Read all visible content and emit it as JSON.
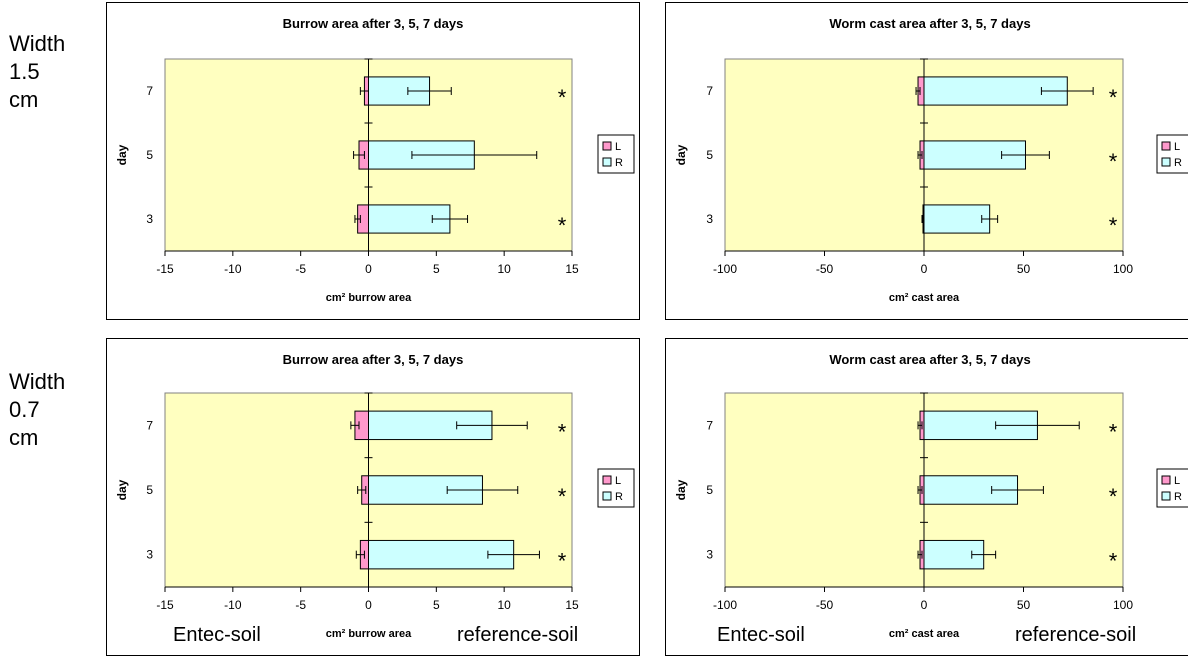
{
  "row_labels": [
    "Width\n1.5\ncm",
    "Width\n0.7\ncm"
  ],
  "bottom_labels": {
    "left": "Entec-soil",
    "right": "reference-soil"
  },
  "colors": {
    "plot_bg": "#ffffc0",
    "L": "#ff99cc",
    "R": "#ccffff"
  },
  "chart_data": [
    {
      "type": "bar",
      "orientation": "horizontal",
      "title": "Burrow area after 3, 5, 7 days",
      "xlabel": "cm² burrow area",
      "ylabel": "day",
      "categories": [
        "3",
        "5",
        "7"
      ],
      "xlim": [
        -15,
        15
      ],
      "xticks": [
        "-15",
        "-10",
        "-5",
        "0",
        "5",
        "10",
        "15"
      ],
      "legend": [
        "L",
        "R"
      ],
      "legend_position": "right",
      "series": [
        {
          "name": "L",
          "values": [
            -0.8,
            -0.7,
            -0.3
          ],
          "errors": [
            0.2,
            0.4,
            0.3
          ]
        },
        {
          "name": "R",
          "values": [
            6.0,
            7.8,
            4.5
          ],
          "errors": [
            1.3,
            4.6,
            1.6
          ]
        }
      ],
      "significance": [
        "*",
        "",
        "*"
      ]
    },
    {
      "type": "bar",
      "orientation": "horizontal",
      "title": "Worm cast area after 3, 5, 7 days",
      "xlabel": "cm² cast area",
      "ylabel": "day",
      "categories": [
        "3",
        "5",
        "7"
      ],
      "xlim": [
        -100,
        100
      ],
      "xticks": [
        "-100",
        "-50",
        "0",
        "50",
        "100"
      ],
      "legend": [
        "L",
        "R"
      ],
      "legend_position": "right",
      "series": [
        {
          "name": "L",
          "values": [
            -0.5,
            -2,
            -3
          ],
          "errors": [
            0.5,
            1,
            1
          ]
        },
        {
          "name": "R",
          "values": [
            33,
            51,
            72
          ],
          "errors": [
            4,
            12,
            13
          ]
        }
      ],
      "significance": [
        "*",
        "*",
        "*"
      ]
    },
    {
      "type": "bar",
      "orientation": "horizontal",
      "title": "Burrow area after 3, 5, 7 days",
      "xlabel": "cm² burrow area",
      "ylabel": "day",
      "categories": [
        "3",
        "5",
        "7"
      ],
      "xlim": [
        -15,
        15
      ],
      "xticks": [
        "-15",
        "-10",
        "-5",
        "0",
        "5",
        "10",
        "15"
      ],
      "legend": [
        "L",
        "R"
      ],
      "legend_position": "right",
      "series": [
        {
          "name": "L",
          "values": [
            -0.6,
            -0.5,
            -1.0
          ],
          "errors": [
            0.3,
            0.3,
            0.3
          ]
        },
        {
          "name": "R",
          "values": [
            10.7,
            8.4,
            9.1
          ],
          "errors": [
            1.9,
            2.6,
            2.6
          ]
        }
      ],
      "significance": [
        "*",
        "*",
        "*"
      ]
    },
    {
      "type": "bar",
      "orientation": "horizontal",
      "title": "Worm cast area after 3, 5, 7 days",
      "xlabel": "cm² cast area",
      "ylabel": "day",
      "categories": [
        "3",
        "5",
        "7"
      ],
      "xlim": [
        -100,
        100
      ],
      "xticks": [
        "-100",
        "-50",
        "0",
        "50",
        "100"
      ],
      "legend": [
        "L",
        "R"
      ],
      "legend_position": "right",
      "series": [
        {
          "name": "L",
          "values": [
            -2,
            -2,
            -2
          ],
          "errors": [
            1,
            1,
            1
          ]
        },
        {
          "name": "R",
          "values": [
            30,
            47,
            57
          ],
          "errors": [
            6,
            13,
            21
          ]
        }
      ],
      "significance": [
        "*",
        "*",
        "*"
      ]
    }
  ]
}
